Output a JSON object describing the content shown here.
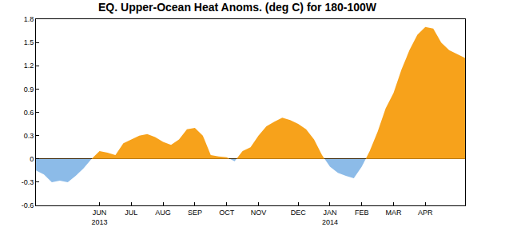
{
  "chart_data": {
    "type": "area",
    "title": "EQ. Upper-Ocean Heat Anoms. (deg C) for 180-100W",
    "categories": [
      null,
      null,
      null,
      null,
      null,
      null,
      null,
      null,
      "JUN\n2013",
      null,
      null,
      null,
      "JUL",
      null,
      null,
      null,
      "AUG",
      null,
      null,
      null,
      "SEP",
      null,
      null,
      null,
      "OCT",
      null,
      null,
      null,
      "NOV",
      null,
      null,
      null,
      null,
      "DEC",
      null,
      null,
      null,
      "JAN\n2014",
      null,
      null,
      null,
      "FEB",
      null,
      null,
      null,
      "MAR",
      null,
      null,
      null,
      "APR",
      null,
      null,
      null,
      null,
      null
    ],
    "values": [
      -0.15,
      -0.2,
      -0.3,
      -0.28,
      -0.3,
      -0.22,
      -0.12,
      0.0,
      0.1,
      0.08,
      0.05,
      0.2,
      0.25,
      0.3,
      0.32,
      0.28,
      0.22,
      0.18,
      0.25,
      0.38,
      0.4,
      0.3,
      0.05,
      0.03,
      0.02,
      -0.03,
      0.1,
      0.15,
      0.3,
      0.42,
      0.48,
      0.53,
      0.5,
      0.45,
      0.38,
      0.25,
      0.05,
      -0.1,
      -0.18,
      -0.22,
      -0.25,
      -0.1,
      0.1,
      0.35,
      0.65,
      0.85,
      1.15,
      1.4,
      1.6,
      1.7,
      1.68,
      1.5,
      1.4,
      1.35,
      1.3
    ],
    "colors": [
      "#8cbbe8",
      "#f7a21b"
    ],
    "ylim": [
      -0.6,
      1.8
    ],
    "yticks": [
      -0.6,
      -0.3,
      0,
      0.3,
      0.6,
      0.9,
      1.2,
      1.5,
      1.8
    ],
    "grid": false
  }
}
